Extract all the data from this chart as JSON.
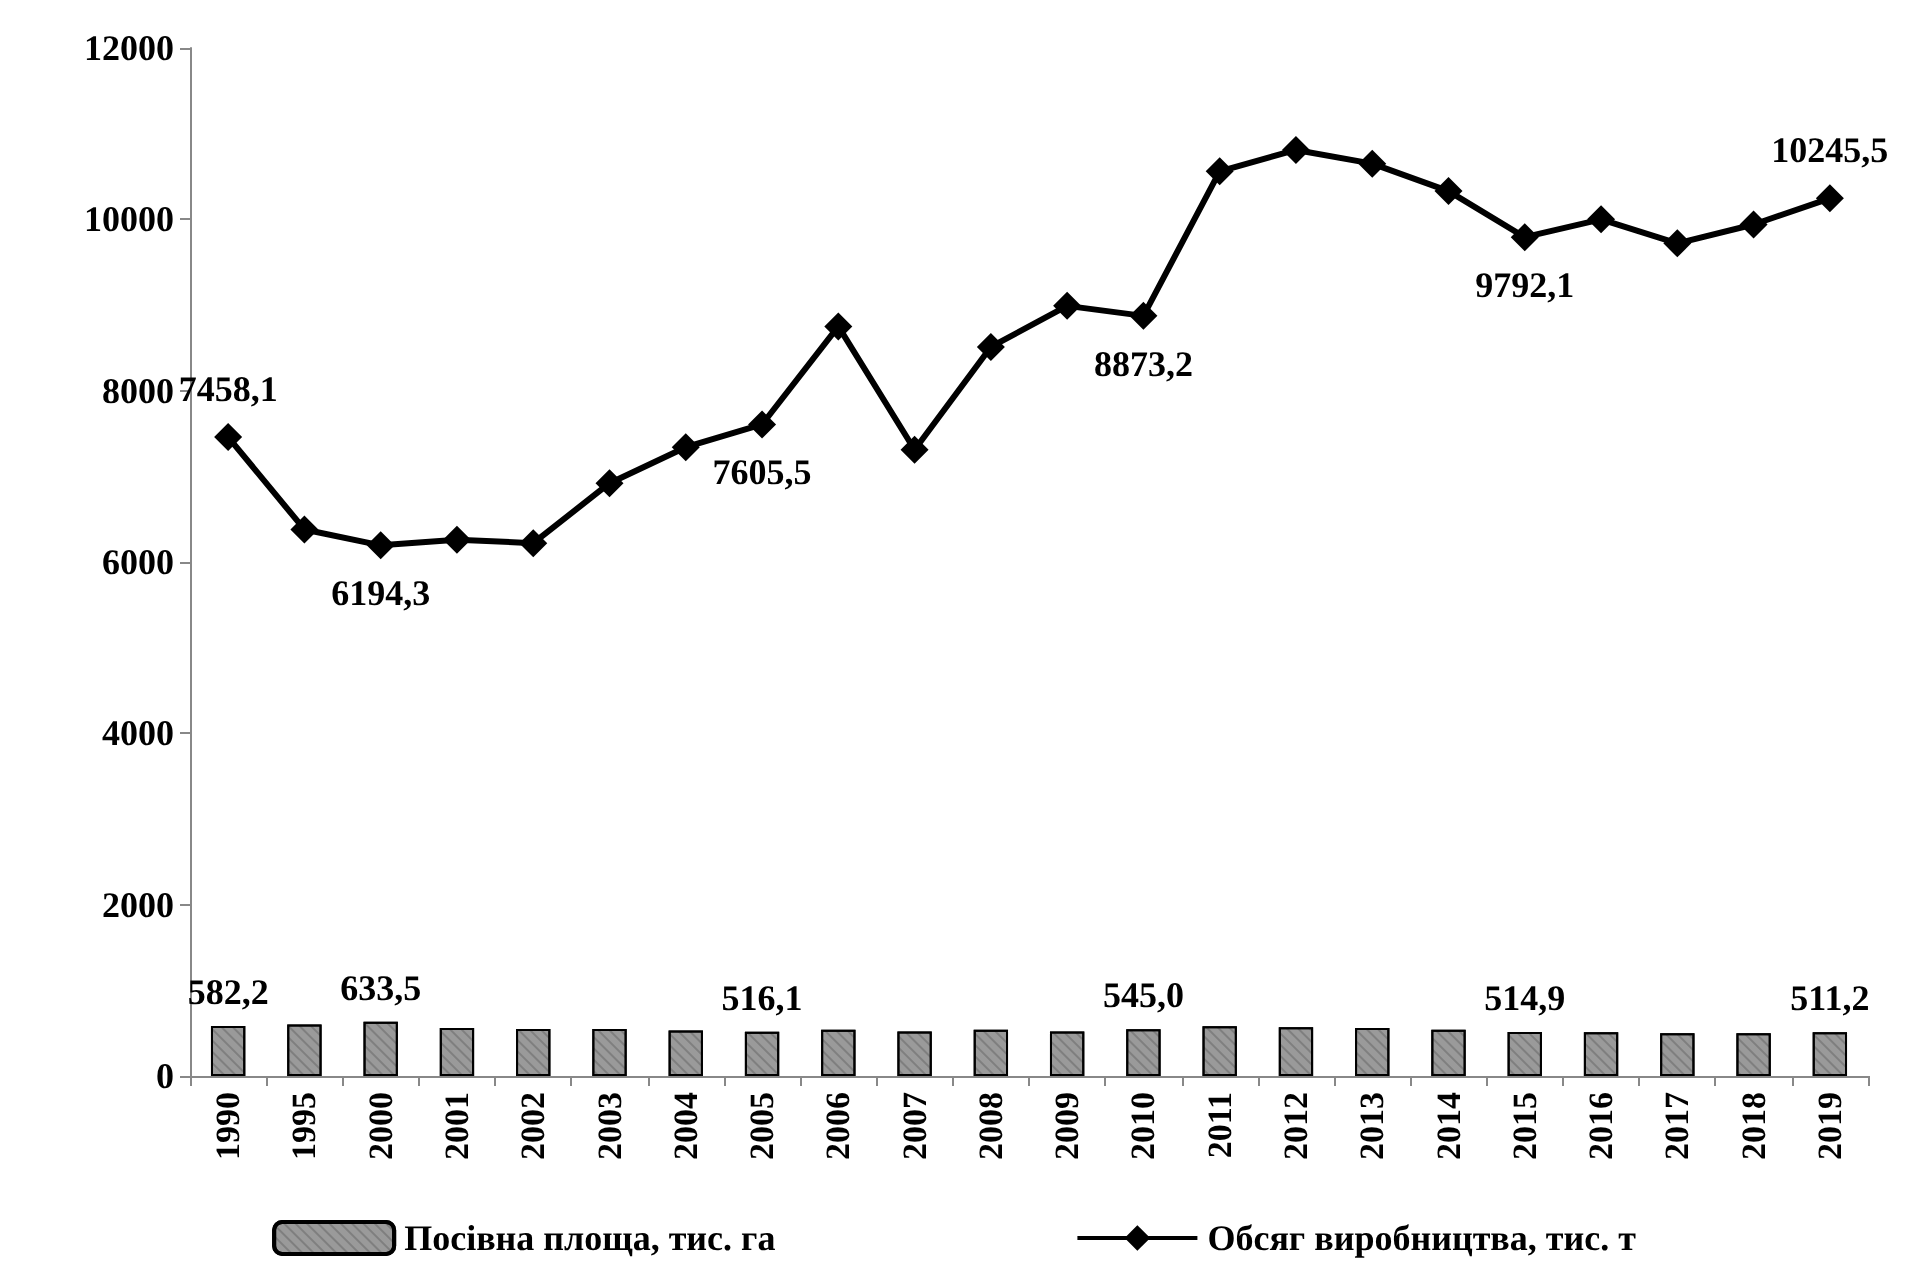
{
  "chart_data": {
    "type": "bar",
    "categories": [
      "1990",
      "1995",
      "2000",
      "2001",
      "2002",
      "2003",
      "2004",
      "2005",
      "2006",
      "2007",
      "2008",
      "2009",
      "2010",
      "2011",
      "2012",
      "2013",
      "2014",
      "2015",
      "2016",
      "2017",
      "2018",
      "2019"
    ],
    "series": [
      {
        "name": "Посівна площа, тис. га",
        "color": "#9a9a9a",
        "values": [
          582.2,
          600,
          633.5,
          560,
          550,
          550,
          530,
          516.1,
          540,
          520,
          540,
          520,
          545.0,
          580,
          570,
          560,
          540,
          514.9,
          510,
          500,
          500,
          511.2
        ],
        "value_labels": [
          "582,2",
          null,
          "633,5",
          null,
          null,
          null,
          null,
          "516,1",
          null,
          null,
          null,
          null,
          "545,0",
          null,
          null,
          null,
          null,
          "514,9",
          null,
          null,
          null,
          "511,2"
        ]
      },
      {
        "name": "Обсяг виробництва, тис. т",
        "type": "line",
        "color": "#000000",
        "marker": "diamond",
        "values": [
          7458.1,
          6380,
          6194.3,
          6260,
          6220,
          6920,
          7340,
          7605.5,
          8750,
          7310,
          8510,
          8990,
          8873.2,
          10560,
          10810,
          10650,
          10330,
          9792.1,
          10000,
          9720,
          9940,
          10245.5
        ],
        "value_labels": [
          "7458,1",
          null,
          "6194,3",
          null,
          null,
          null,
          null,
          "7605,5",
          null,
          null,
          null,
          null,
          "8873,2",
          null,
          null,
          null,
          null,
          "9792,1",
          null,
          null,
          null,
          "10245,5"
        ]
      }
    ],
    "ylim": [
      0,
      12000
    ],
    "yticks": [
      0,
      2000,
      4000,
      6000,
      8000,
      10000,
      12000
    ],
    "grid": false,
    "legend": "bottom"
  }
}
